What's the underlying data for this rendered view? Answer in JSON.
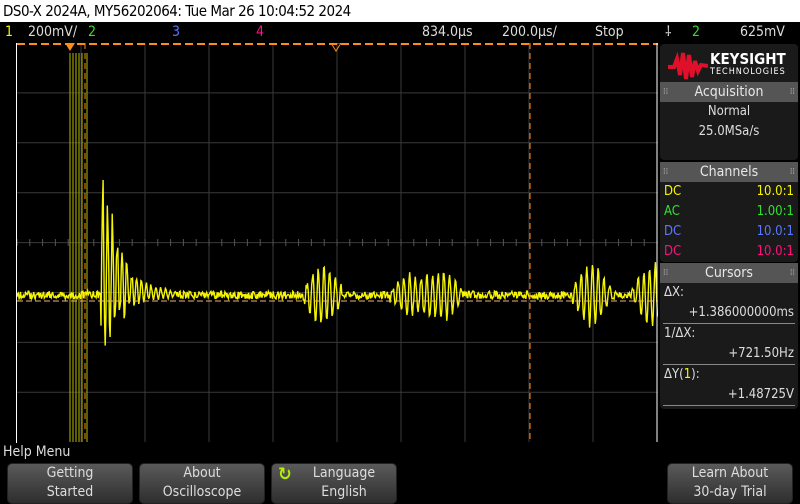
{
  "title": "DS0-X 2024A, MY56202064: Tue Mar 26 10:04:52 2024",
  "status": {
    "ch1": "1",
    "ch1_scale": "200mV/",
    "ch2": "2",
    "ch3": "3",
    "ch4": "4",
    "delay": "834.0µs",
    "timebase": "200.0µs/",
    "run_state": "Stop",
    "trigger_icon": "rising-edge-icon",
    "trigger_source": "2",
    "trigger_level": "625mV"
  },
  "logo": {
    "name": "KEYSIGHT",
    "sub": "TECHNOLOGIES",
    "color": "#e0102a"
  },
  "acquisition": {
    "header": "Acquisition",
    "mode": "Normal",
    "rate": "25.0MSa/s"
  },
  "channels": {
    "header": "Channels",
    "items": [
      {
        "coupling": "DC",
        "probe": "10.0:1",
        "color": "#f5f500"
      },
      {
        "coupling": "AC",
        "probe": "1.00:1",
        "color": "#30e030"
      },
      {
        "coupling": "DC",
        "probe": "10.0:1",
        "color": "#5a78ff"
      },
      {
        "coupling": "DC",
        "probe": "10.0:1",
        "color": "#ff1080"
      }
    ]
  },
  "cursors": {
    "header": "Cursors",
    "dx_label": "ΔX:",
    "dx": "+1.386000000ms",
    "inv_label": "1/ΔX:",
    "inv": "+721.50Hz",
    "dy_label": "ΔY(",
    "dy_ch": "1",
    "dy_close": "):",
    "dy": "+1.48725V"
  },
  "help_menu": "Help Menu",
  "softkeys": [
    {
      "l1": "Getting",
      "l2": "Started"
    },
    {
      "l1": "About",
      "l2": "Oscilloscope"
    },
    {
      "l1": "Language",
      "l2": "English",
      "icon": "cycle-icon"
    },
    {
      "l1": "Learn About",
      "l2": "30-day Trial"
    }
  ],
  "colors": {
    "ch1": "#f5f500",
    "cursor": "#ff8c1a",
    "grid": "#3a3a3a"
  }
}
